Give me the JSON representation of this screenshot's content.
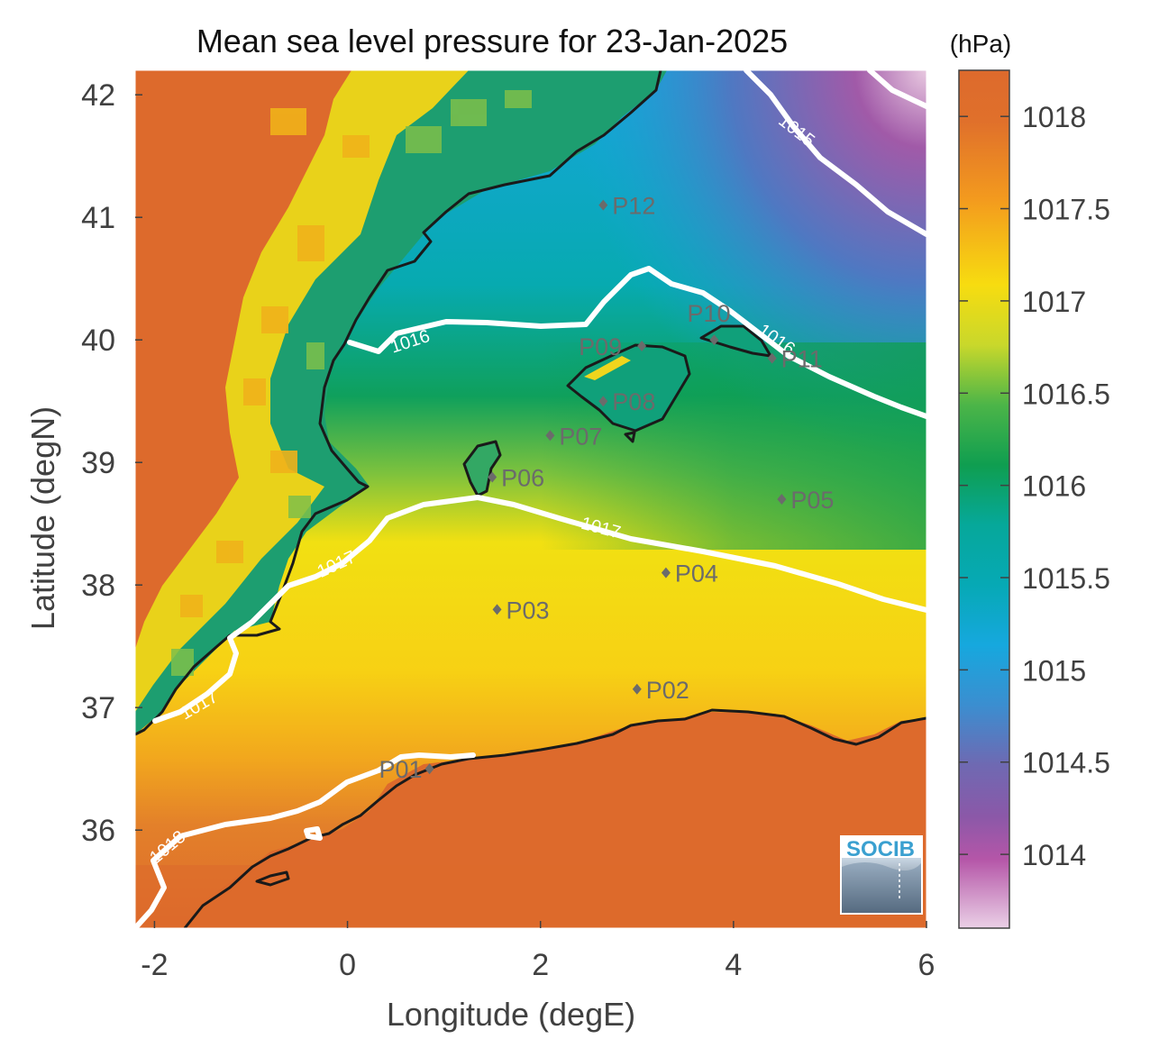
{
  "title": "Mean sea level pressure for 23-Jan-2025",
  "units_label": "(hPa)",
  "xlabel": "Longitude (degE)",
  "ylabel": "Latitude (degN)",
  "x_ticks": [
    "-2",
    "0",
    "2",
    "4",
    "6"
  ],
  "y_ticks": [
    "42",
    "41",
    "40",
    "39",
    "38",
    "37",
    "36"
  ],
  "colorbar_ticks": [
    "1018",
    "1017.5",
    "1017",
    "1016.5",
    "1016",
    "1015.5",
    "1015",
    "1014.5",
    "1014"
  ],
  "contour_labels": [
    "1015",
    "1016",
    "1016",
    "1017",
    "1017",
    "1017",
    "1018"
  ],
  "stations": [
    "P01",
    "P02",
    "P03",
    "P04",
    "P05",
    "P06",
    "P07",
    "P08",
    "P09",
    "P10",
    "P11",
    "P12"
  ],
  "logo_text": "SOCIB",
  "colors": {
    "land_high": "#dd6a2c",
    "yellow": "#f5de10",
    "green": "#0f9e50",
    "teal": "#06a8ad",
    "blue": "#16a5dc",
    "purple": "#8659a8",
    "pink": "#e7c6de",
    "coastline": "#1a1a1a",
    "contour": "#ffffff",
    "station_marker": "#6b6b6b"
  },
  "map": {
    "lon_range": [
      -2.2,
      6.0
    ],
    "lat_range": [
      35.2,
      42.2
    ],
    "colorbar_range_hPa": [
      1013.6,
      1018.25
    ],
    "contour_levels_hPa": [
      1015,
      1016,
      1017,
      1018
    ]
  }
}
